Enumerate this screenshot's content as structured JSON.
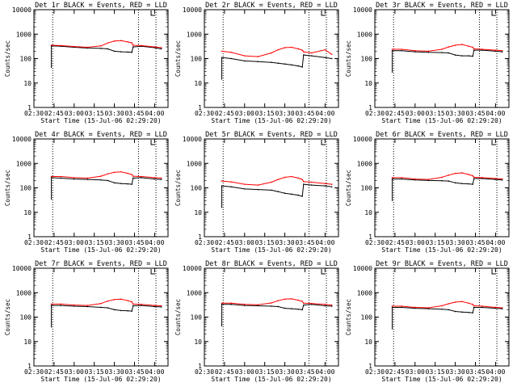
{
  "chart_data": {
    "type": "line",
    "layout": "3x3 grid",
    "y_scale": "log",
    "ylim": [
      1,
      10000
    ],
    "ytick_labels": [
      "1",
      "10",
      "100",
      "1000",
      "10000"
    ],
    "ylabel": "Counts/sec",
    "xlabel": "Start Time (15-Jul-06 02:29:20)",
    "x_range": [
      "02:30",
      "04:10"
    ],
    "xtick_labels": [
      "02:30",
      "02:45",
      "03:00",
      "03:15",
      "03:30",
      "03:45",
      "04:00"
    ],
    "legend_text": "BLACK = Events, RED = LLD",
    "vertical_markers": [
      "02:44",
      "03:48",
      "04:01"
    ],
    "series_styles": [
      {
        "key": "events",
        "color": "#000000"
      },
      {
        "key": "lld",
        "color": "#ff0000"
      }
    ],
    "panels": [
      {
        "title": "Det 1r",
        "x": [
          "02:43",
          "02:50",
          "03:00",
          "03:10",
          "03:20",
          "03:25",
          "03:30",
          "03:35",
          "03:40",
          "03:43",
          "03:44",
          "03:50",
          "04:00",
          "04:05"
        ],
        "events": [
          330,
          320,
          290,
          270,
          260,
          250,
          200,
          190,
          185,
          180,
          300,
          320,
          280,
          250
        ],
        "lld": [
          350,
          340,
          310,
          290,
          330,
          430,
          520,
          540,
          480,
          440,
          350,
          340,
          300,
          280
        ]
      },
      {
        "title": "Det 2r",
        "x": [
          "02:43",
          "02:50",
          "03:00",
          "03:10",
          "03:20",
          "03:25",
          "03:30",
          "03:35",
          "03:40",
          "03:43",
          "03:44",
          "03:50",
          "04:00",
          "04:05"
        ],
        "events": [
          110,
          100,
          80,
          75,
          70,
          65,
          60,
          55,
          50,
          45,
          140,
          130,
          110,
          100
        ],
        "lld": [
          200,
          180,
          130,
          120,
          170,
          230,
          280,
          290,
          250,
          220,
          190,
          170,
          230,
          150
        ]
      },
      {
        "title": "Det 3r",
        "x": [
          "02:43",
          "02:50",
          "03:00",
          "03:10",
          "03:20",
          "03:25",
          "03:30",
          "03:35",
          "03:40",
          "03:43",
          "03:44",
          "03:50",
          "04:00",
          "04:05"
        ],
        "events": [
          210,
          210,
          190,
          180,
          175,
          170,
          140,
          130,
          130,
          125,
          220,
          220,
          200,
          190
        ],
        "lld": [
          240,
          240,
          210,
          200,
          240,
          300,
          350,
          380,
          320,
          290,
          250,
          240,
          220,
          210
        ]
      },
      {
        "title": "Det 4r",
        "x": [
          "02:43",
          "02:50",
          "03:00",
          "03:10",
          "03:20",
          "03:25",
          "03:30",
          "03:35",
          "03:40",
          "03:43",
          "03:44",
          "03:50",
          "04:00",
          "04:05"
        ],
        "events": [
          260,
          250,
          230,
          220,
          210,
          200,
          160,
          150,
          145,
          140,
          250,
          260,
          230,
          220
        ],
        "lld": [
          290,
          290,
          260,
          250,
          300,
          370,
          430,
          450,
          390,
          350,
          300,
          290,
          260,
          250
        ]
      },
      {
        "title": "Det 5r",
        "x": [
          "02:43",
          "02:50",
          "03:00",
          "03:10",
          "03:20",
          "03:25",
          "03:30",
          "03:35",
          "03:40",
          "03:43",
          "03:44",
          "03:50",
          "04:00",
          "04:05"
        ],
        "events": [
          120,
          110,
          90,
          85,
          80,
          70,
          60,
          55,
          50,
          45,
          140,
          130,
          120,
          110
        ],
        "lld": [
          190,
          175,
          140,
          130,
          170,
          220,
          270,
          290,
          250,
          220,
          180,
          170,
          150,
          140
        ]
      },
      {
        "title": "Det 6r",
        "x": [
          "02:43",
          "02:50",
          "03:00",
          "03:10",
          "03:20",
          "03:25",
          "03:30",
          "03:35",
          "03:40",
          "03:43",
          "03:44",
          "03:50",
          "04:00",
          "04:05"
        ],
        "events": [
          230,
          230,
          210,
          200,
          195,
          190,
          160,
          150,
          145,
          140,
          240,
          240,
          220,
          210
        ],
        "lld": [
          260,
          260,
          230,
          220,
          270,
          330,
          390,
          410,
          350,
          310,
          270,
          260,
          240,
          230
        ]
      },
      {
        "title": "Det 7r",
        "x": [
          "02:43",
          "02:50",
          "03:00",
          "03:10",
          "03:20",
          "03:25",
          "03:30",
          "03:35",
          "03:40",
          "03:43",
          "03:44",
          "03:50",
          "04:00",
          "04:05"
        ],
        "events": [
          300,
          300,
          280,
          270,
          250,
          240,
          200,
          185,
          180,
          175,
          290,
          300,
          270,
          260
        ],
        "lld": [
          340,
          340,
          310,
          300,
          360,
          450,
          520,
          540,
          470,
          420,
          340,
          330,
          300,
          290
        ]
      },
      {
        "title": "Det 8r",
        "x": [
          "02:43",
          "02:50",
          "03:00",
          "03:10",
          "03:20",
          "03:25",
          "03:30",
          "03:35",
          "03:40",
          "03:43",
          "03:44",
          "03:50",
          "04:00",
          "04:05"
        ],
        "events": [
          330,
          330,
          300,
          290,
          280,
          270,
          230,
          220,
          210,
          200,
          310,
          330,
          290,
          280
        ],
        "lld": [
          370,
          370,
          330,
          320,
          380,
          470,
          540,
          560,
          490,
          440,
          370,
          360,
          330,
          310
        ]
      },
      {
        "title": "Det 9r",
        "x": [
          "02:43",
          "02:50",
          "03:00",
          "03:10",
          "03:20",
          "03:25",
          "03:30",
          "03:35",
          "03:40",
          "03:43",
          "03:44",
          "03:50",
          "04:00",
          "04:05"
        ],
        "events": [
          250,
          250,
          230,
          220,
          210,
          200,
          170,
          160,
          155,
          150,
          250,
          250,
          230,
          220
        ],
        "lld": [
          280,
          280,
          250,
          240,
          290,
          350,
          410,
          430,
          370,
          330,
          290,
          280,
          250,
          240
        ]
      }
    ]
  }
}
